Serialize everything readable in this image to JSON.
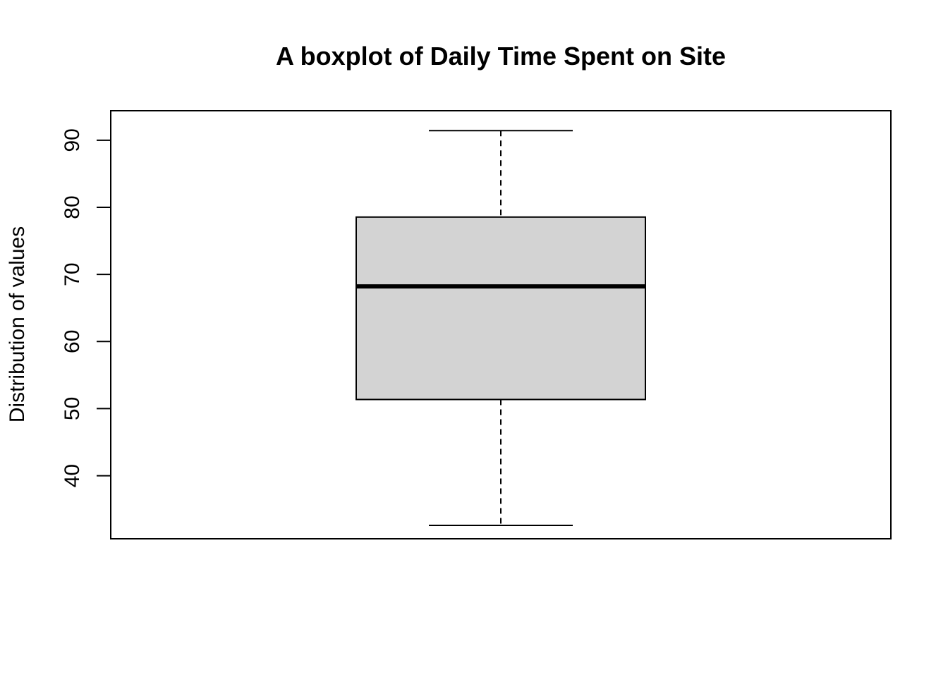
{
  "chart_data": {
    "type": "boxplot",
    "title": "A boxplot of Daily Time Spent on Site",
    "xlabel": "",
    "ylabel": "Distribution of values",
    "ylim": [
      30.6,
      94.4
    ],
    "yticks": [
      40,
      50,
      60,
      70,
      80,
      90
    ],
    "grid": false,
    "series": [
      {
        "min": 32.6,
        "q1": 51.36,
        "median": 68.22,
        "q3": 78.55,
        "max": 91.43
      }
    ],
    "colors": {
      "box_fill": "#d3d3d3",
      "stroke": "#000000"
    }
  }
}
